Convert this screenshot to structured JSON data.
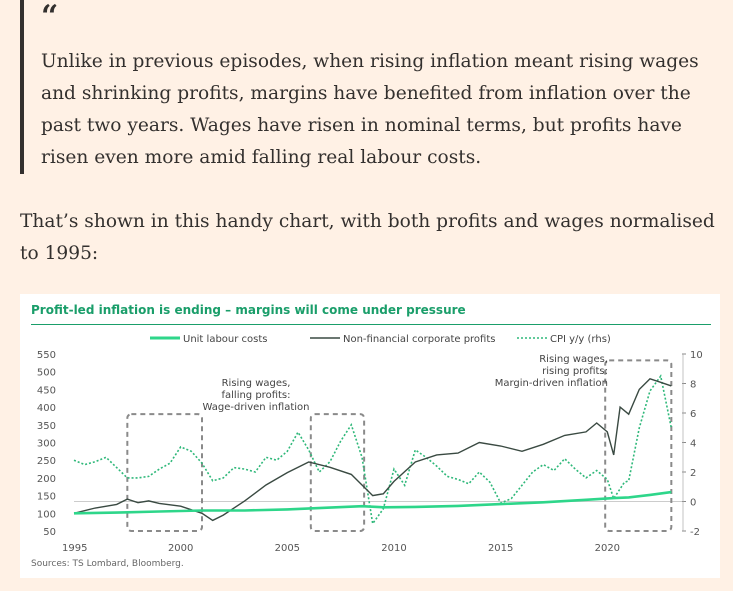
{
  "quote": {
    "mark": "“",
    "text": "Unlike in previous episodes, when rising inflation meant rising wages and shrinking profits, margins have benefited from inflation over the past two years. Wages have risen in nominal terms, but profits have risen even more amid falling real labour costs."
  },
  "paragraph": "That’s shown in this handy chart, with both profits and wages normalised to 1995:",
  "chart_data": {
    "type": "line",
    "title": "Profit-led inflation is ending – margins will come under pressure",
    "source": "Sources: TS Lombard, Bloomberg.",
    "xlim": [
      1995,
      2023.5
    ],
    "x_ticks": [
      "1995",
      "2000",
      "2005",
      "2010",
      "2015",
      "2020"
    ],
    "y_left": {
      "ylim": [
        50,
        550
      ],
      "ticks": [
        "50",
        "100",
        "150",
        "200",
        "250",
        "300",
        "350",
        "400",
        "450",
        "500",
        "550"
      ]
    },
    "y_right": {
      "ylim": [
        -2,
        10
      ],
      "ticks": [
        "-2",
        "0",
        "2",
        "4",
        "6",
        "8",
        "10"
      ]
    },
    "colors": {
      "unit_labour": "#2ed68a",
      "profits": "#3a4a42",
      "cpi": "#2fb87a",
      "title": "#1a9e6a",
      "box": "#8a8a8a"
    },
    "series": [
      {
        "name": "Unit labour costs",
        "axis": "left",
        "x": [
          1995,
          1997,
          1999,
          2001,
          2003,
          2005,
          2007,
          2008.5,
          2009.5,
          2011,
          2013,
          2015,
          2017,
          2019,
          2020.3,
          2021,
          2022,
          2023
        ],
        "values": [
          100,
          102,
          105,
          108,
          108,
          111,
          116,
          120,
          117,
          118,
          121,
          126,
          131,
          138,
          143,
          145,
          152,
          160
        ]
      },
      {
        "name": "Non-financial corporate profits",
        "axis": "left",
        "x": [
          1995,
          1996,
          1997,
          1997.5,
          1998,
          1998.5,
          1999,
          2000,
          2001,
          2001.5,
          2002,
          2003,
          2004,
          2005,
          2006,
          2007,
          2008,
          2008.5,
          2009,
          2009.5,
          2010,
          2011,
          2012,
          2013,
          2014,
          2015,
          2016,
          2017,
          2018,
          2019,
          2019.5,
          2020,
          2020.3,
          2020.6,
          2021,
          2021.5,
          2022,
          2022.5,
          2023
        ],
        "values": [
          100,
          115,
          125,
          140,
          130,
          135,
          128,
          120,
          100,
          80,
          95,
          135,
          180,
          215,
          245,
          230,
          210,
          180,
          150,
          155,
          190,
          245,
          265,
          270,
          300,
          290,
          275,
          295,
          320,
          330,
          355,
          330,
          265,
          400,
          380,
          450,
          480,
          470,
          460
        ]
      },
      {
        "name": "CPI y/y (rhs)",
        "axis": "right",
        "x": [
          1995,
          1995.5,
          1996,
          1996.5,
          1997,
          1997.5,
          1998,
          1998.5,
          1999,
          1999.5,
          2000,
          2000.5,
          2001,
          2001.5,
          2002,
          2002.5,
          2003,
          2003.5,
          2004,
          2004.5,
          2005,
          2005.5,
          2006,
          2006.5,
          2007,
          2007.5,
          2008,
          2008.5,
          2009,
          2009.5,
          2010,
          2010.5,
          2011,
          2011.5,
          2012,
          2012.5,
          2013,
          2013.5,
          2014,
          2014.5,
          2015,
          2015.5,
          2016,
          2016.5,
          2017,
          2017.5,
          2018,
          2018.5,
          2019,
          2019.5,
          2020,
          2020.3,
          2020.8,
          2021,
          2021.5,
          2022,
          2022.5,
          2023
        ],
        "values": [
          2.8,
          2.5,
          2.7,
          3.0,
          2.3,
          1.6,
          1.6,
          1.7,
          2.2,
          2.6,
          3.7,
          3.4,
          2.6,
          1.4,
          1.6,
          2.3,
          2.2,
          2.0,
          3.0,
          2.8,
          3.4,
          4.7,
          3.5,
          2.0,
          2.7,
          4.1,
          5.2,
          3.0,
          -1.5,
          -0.5,
          2.2,
          1.1,
          3.5,
          3.0,
          2.4,
          1.7,
          1.5,
          1.2,
          2.0,
          1.3,
          -0.1,
          0.2,
          1.1,
          2.0,
          2.5,
          2.1,
          2.9,
          2.2,
          1.6,
          2.1,
          1.5,
          0.2,
          1.3,
          1.4,
          5.0,
          7.5,
          8.5,
          5.0
        ]
      }
    ],
    "annotations": [
      {
        "text": [
          "Rising wages,",
          "falling profits:",
          "Wage-driven inflation"
        ],
        "box": [
          1997.5,
          2001.0
        ],
        "box2": [
          2006.1,
          2008.6
        ]
      },
      {
        "text": [
          "Rising wages,",
          "rising profits:",
          "Margin-driven inflation"
        ],
        "box": [
          2019.9,
          2023.0
        ]
      }
    ]
  }
}
